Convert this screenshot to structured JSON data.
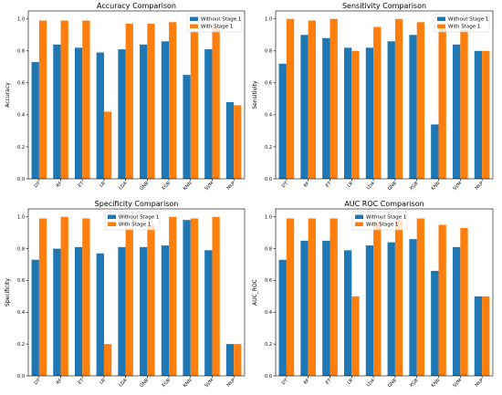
{
  "colors": {
    "without": "#1f77b4",
    "with": "#ff7f0e"
  },
  "chart_data": [
    {
      "type": "bar",
      "title": "Accuracy Comparison",
      "xlabel": "",
      "ylabel": "Accuracy",
      "ylim": [
        0,
        1.05
      ],
      "yticks": [
        "0.0",
        "0.2",
        "0.4",
        "0.6",
        "0.8",
        "1.0"
      ],
      "legend_position": "top-right",
      "categories": [
        "DT",
        "RF",
        "ET",
        "LR",
        "LDA",
        "GNB",
        "XGB",
        "KNN",
        "SVM",
        "MLP"
      ],
      "series": [
        {
          "name": "Without Stage 1",
          "values": [
            0.73,
            0.84,
            0.82,
            0.79,
            0.81,
            0.84,
            0.86,
            0.65,
            0.81,
            0.48
          ]
        },
        {
          "name": "With Stage 1",
          "values": [
            0.99,
            0.99,
            0.99,
            0.42,
            0.97,
            0.97,
            0.98,
            0.92,
            0.95,
            0.46
          ]
        }
      ]
    },
    {
      "type": "bar",
      "title": "Sensitivity Comparison",
      "xlabel": "",
      "ylabel": "Sensitivity",
      "ylim": [
        0,
        1.05
      ],
      "yticks": [
        "0.0",
        "0.2",
        "0.4",
        "0.6",
        "0.8",
        "1.0"
      ],
      "legend_position": "top-right",
      "categories": [
        "DT",
        "RF",
        "ET",
        "LR",
        "LDA",
        "GNB",
        "XGB",
        "KNN",
        "SVM",
        "MLP"
      ],
      "series": [
        {
          "name": "Without Stage 1",
          "values": [
            0.72,
            0.9,
            0.88,
            0.82,
            0.82,
            0.86,
            0.9,
            0.34,
            0.84,
            0.8
          ]
        },
        {
          "name": "With Stage 1",
          "values": [
            1.0,
            0.99,
            1.0,
            0.8,
            0.95,
            1.0,
            0.98,
            0.95,
            0.93,
            0.8
          ]
        }
      ]
    },
    {
      "type": "bar",
      "title": "Specificity Comparison",
      "xlabel": "",
      "ylabel": "Specificity",
      "ylim": [
        0,
        1.05
      ],
      "yticks": [
        "0.0",
        "0.2",
        "0.4",
        "0.6",
        "0.8",
        "1.0"
      ],
      "legend_position": "top-center",
      "categories": [
        "DT",
        "RF",
        "ET",
        "LR",
        "LDA",
        "GNB",
        "XGB",
        "KNN",
        "SVM",
        "MLP"
      ],
      "series": [
        {
          "name": "Without Stage 1",
          "values": [
            0.73,
            0.8,
            0.81,
            0.77,
            0.81,
            0.81,
            0.82,
            0.98,
            0.79,
            0.2
          ]
        },
        {
          "name": "With Stage 1",
          "values": [
            0.99,
            1.0,
            0.99,
            0.2,
            0.93,
            0.95,
            1.0,
            0.99,
            1.0,
            0.2
          ]
        }
      ]
    },
    {
      "type": "bar",
      "title": "AUC ROC Comparison",
      "xlabel": "",
      "ylabel": "AUC_ROC",
      "ylim": [
        0,
        1.05
      ],
      "yticks": [
        "0.0",
        "0.2",
        "0.4",
        "0.6",
        "0.8",
        "1.0"
      ],
      "legend_position": "top-center",
      "categories": [
        "DT",
        "RF",
        "ET",
        "LR",
        "LDA",
        "GNB",
        "XGB",
        "KNN",
        "SVM",
        "MLP"
      ],
      "series": [
        {
          "name": "Without Stage 1",
          "values": [
            0.73,
            0.85,
            0.85,
            0.79,
            0.82,
            0.84,
            0.86,
            0.66,
            0.81,
            0.5
          ]
        },
        {
          "name": "With Stage 1",
          "values": [
            0.99,
            0.99,
            0.99,
            0.5,
            0.97,
            0.98,
            0.99,
            0.95,
            0.93,
            0.5
          ]
        }
      ]
    }
  ]
}
